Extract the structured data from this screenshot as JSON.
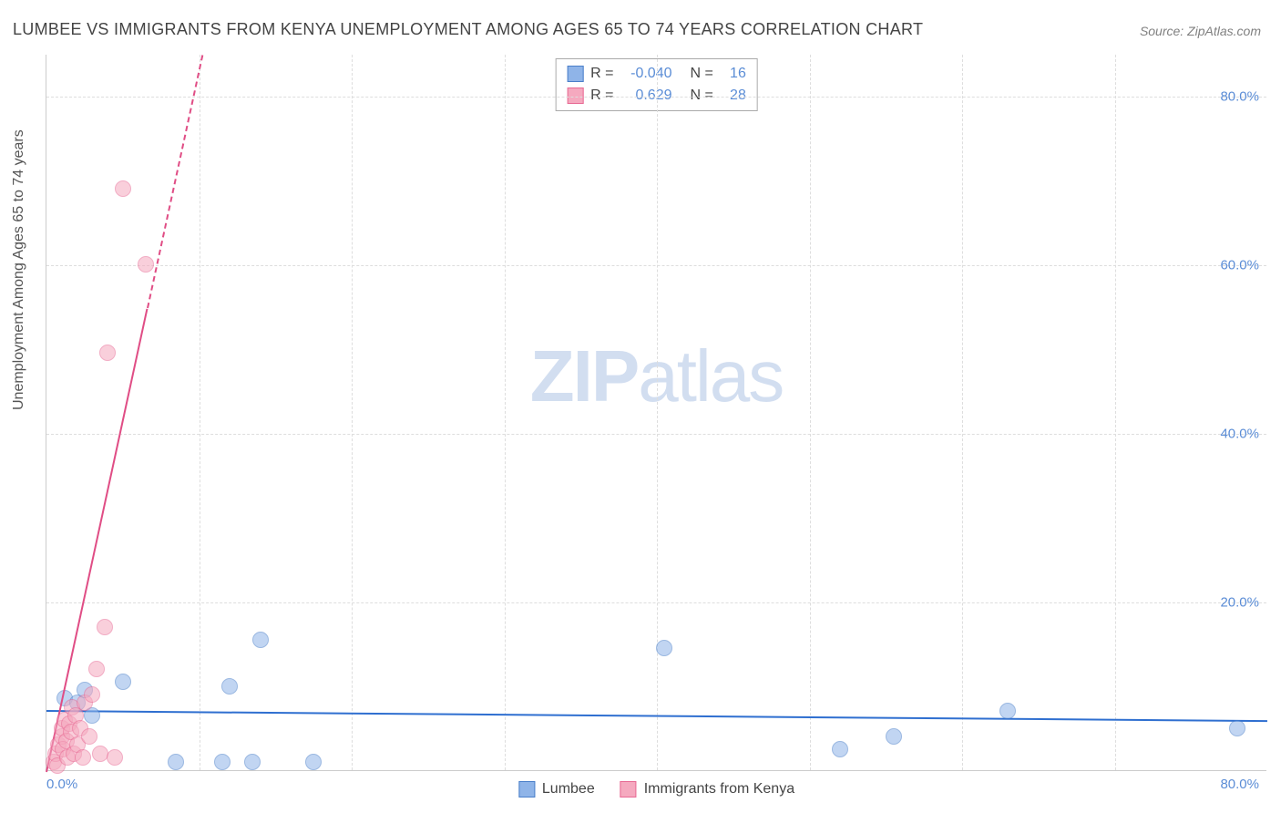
{
  "title": "LUMBEE VS IMMIGRANTS FROM KENYA UNEMPLOYMENT AMONG AGES 65 TO 74 YEARS CORRELATION CHART",
  "source": "Source: ZipAtlas.com",
  "ylabel": "Unemployment Among Ages 65 to 74 years",
  "watermark_a": "ZIP",
  "watermark_b": "atlas",
  "chart": {
    "type": "scatter",
    "xlim": [
      0,
      80
    ],
    "ylim": [
      0,
      85
    ],
    "xticks": [
      {
        "v": 0,
        "l": "0.0%"
      },
      {
        "v": 80,
        "l": "80.0%"
      }
    ],
    "yticks": [
      {
        "v": 20,
        "l": "20.0%"
      },
      {
        "v": 40,
        "l": "40.0%"
      },
      {
        "v": 60,
        "l": "60.0%"
      },
      {
        "v": 80,
        "l": "80.0%"
      }
    ],
    "x_gridlines": [
      10,
      20,
      30,
      40,
      50,
      60,
      70
    ],
    "y_gridlines": [
      20,
      40,
      60,
      80
    ],
    "background_color": "#ffffff",
    "grid_color": "#dddddd",
    "axis_color": "#cccccc",
    "tick_text_color": "#5b8dd6",
    "point_radius": 9,
    "point_opacity": 0.55,
    "series": [
      {
        "name": "Lumbee",
        "color_fill": "#8fb4e8",
        "color_stroke": "#4a7fc9",
        "R": "-0.040",
        "N": "16",
        "trend": {
          "x1": 0,
          "y1": 7.2,
          "x2": 80,
          "y2": 6.0,
          "color": "#2f6fd0",
          "width": 2,
          "dash": false
        },
        "points": [
          {
            "x": 1.2,
            "y": 8.5
          },
          {
            "x": 2.0,
            "y": 8.0
          },
          {
            "x": 2.5,
            "y": 9.5
          },
          {
            "x": 3.0,
            "y": 6.5
          },
          {
            "x": 5.0,
            "y": 10.5
          },
          {
            "x": 8.5,
            "y": 1.0
          },
          {
            "x": 11.5,
            "y": 1.0
          },
          {
            "x": 12.0,
            "y": 10.0
          },
          {
            "x": 13.5,
            "y": 1.0
          },
          {
            "x": 14.0,
            "y": 15.5
          },
          {
            "x": 17.5,
            "y": 1.0
          },
          {
            "x": 40.5,
            "y": 14.5
          },
          {
            "x": 52.0,
            "y": 2.5
          },
          {
            "x": 55.5,
            "y": 4.0
          },
          {
            "x": 63.0,
            "y": 7.0
          },
          {
            "x": 78.0,
            "y": 5.0
          }
        ]
      },
      {
        "name": "Immigrants from Kenya",
        "color_fill": "#f5a9bf",
        "color_stroke": "#e86a94",
        "R": "0.629",
        "N": "28",
        "trend": {
          "x1": 0,
          "y1": 0,
          "x2": 10.2,
          "y2": 85,
          "color": "#e04d85",
          "width": 2,
          "dash": true,
          "solid_until_y": 55
        },
        "points": [
          {
            "x": 0.5,
            "y": 1.0
          },
          {
            "x": 0.6,
            "y": 2.0
          },
          {
            "x": 0.7,
            "y": 0.5
          },
          {
            "x": 0.8,
            "y": 3.0
          },
          {
            "x": 1.0,
            "y": 4.0
          },
          {
            "x": 1.0,
            "y": 5.0
          },
          {
            "x": 1.1,
            "y": 2.5
          },
          {
            "x": 1.2,
            "y": 6.0
          },
          {
            "x": 1.3,
            "y": 3.5
          },
          {
            "x": 1.4,
            "y": 1.5
          },
          {
            "x": 1.5,
            "y": 5.5
          },
          {
            "x": 1.6,
            "y": 4.5
          },
          {
            "x": 1.7,
            "y": 7.5
          },
          {
            "x": 1.8,
            "y": 2.0
          },
          {
            "x": 1.9,
            "y": 6.5
          },
          {
            "x": 2.0,
            "y": 3.0
          },
          {
            "x": 2.2,
            "y": 5.0
          },
          {
            "x": 2.4,
            "y": 1.5
          },
          {
            "x": 2.5,
            "y": 8.0
          },
          {
            "x": 2.8,
            "y": 4.0
          },
          {
            "x": 3.0,
            "y": 9.0
          },
          {
            "x": 3.3,
            "y": 12.0
          },
          {
            "x": 3.5,
            "y": 2.0
          },
          {
            "x": 3.8,
            "y": 17.0
          },
          {
            "x": 4.5,
            "y": 1.5
          },
          {
            "x": 4.0,
            "y": 49.5
          },
          {
            "x": 5.0,
            "y": 69.0
          },
          {
            "x": 6.5,
            "y": 60.0
          }
        ]
      }
    ],
    "stats_box": {
      "R_label": "R =",
      "N_label": "N ="
    },
    "bottom_legend": [
      "Lumbee",
      "Immigrants from Kenya"
    ]
  }
}
